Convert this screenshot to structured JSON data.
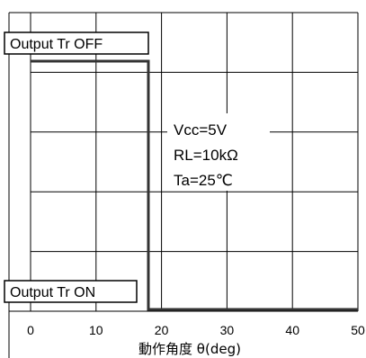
{
  "chart_data": {
    "type": "line",
    "xlabel": "動作角度 θ(deg)",
    "ylabel": "",
    "xlim": [
      0,
      50
    ],
    "x_ticks": [
      "0",
      "10",
      "20",
      "30",
      "40",
      "50"
    ],
    "grid": true,
    "states": {
      "off_label": "Output Tr OFF",
      "on_label": "Output Tr ON"
    },
    "series": [
      {
        "x": [
          0,
          18,
          18,
          50
        ],
        "y": [
          "OFF",
          "OFF",
          "ON",
          "ON"
        ]
      }
    ],
    "conditions": [
      "Vcc=5V",
      "RL=10kΩ",
      "Ta=25℃"
    ]
  }
}
